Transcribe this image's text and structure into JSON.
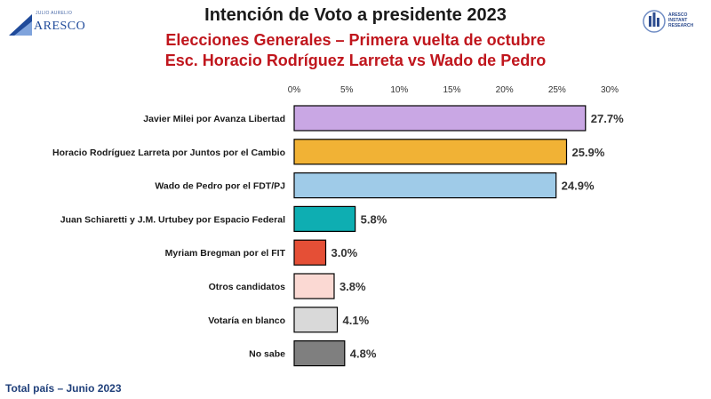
{
  "header": {
    "title": "Intención de Voto a presidente 2023",
    "subtitle_1": "Elecciones Generales – Primera vuelta de octubre",
    "subtitle_2": "Esc. Horacio Rodríguez Larreta vs Wado de Pedro"
  },
  "logo_left": {
    "small_text": "JULIO AURELIO",
    "name": "ARESCO"
  },
  "logo_right": {
    "text_1": "ARESCO",
    "text_2": "INSTANT",
    "text_3": "RESEARCH"
  },
  "footer": {
    "note": "Total país – Junio 2023"
  },
  "chart_data": {
    "type": "bar",
    "orientation": "horizontal",
    "categories": [
      "Javier Milei por Avanza Libertad",
      "Horacio Rodríguez Larreta por Juntos por el Cambio",
      "Wado de Pedro por el FDT/PJ",
      "Juan Schiaretti y J.M. Urtubey por Espacio Federal",
      "Myriam Bregman por el FIT",
      "Otros candidatos",
      "Votaría en blanco",
      "No sabe"
    ],
    "values": [
      27.7,
      25.9,
      24.9,
      5.8,
      3.0,
      3.8,
      4.1,
      4.8
    ],
    "value_labels": [
      "27.7%",
      "25.9%",
      "24.9%",
      "5.8%",
      "3.0%",
      "3.8%",
      "4.1%",
      "4.8%"
    ],
    "colors": [
      "#c9a7e4",
      "#f1b235",
      "#9fcbe8",
      "#0eaeb2",
      "#e54f36",
      "#fbd9d3",
      "#d9d9d9",
      "#7f7f7f"
    ],
    "xlim": [
      0,
      30
    ],
    "x_ticks": [
      "0%",
      "5%",
      "10%",
      "15%",
      "20%",
      "25%",
      "30%"
    ],
    "x_tick_values": [
      0,
      5,
      10,
      15,
      20,
      25,
      30
    ],
    "x_axis_position": "top",
    "grid": false,
    "legend": "none"
  }
}
